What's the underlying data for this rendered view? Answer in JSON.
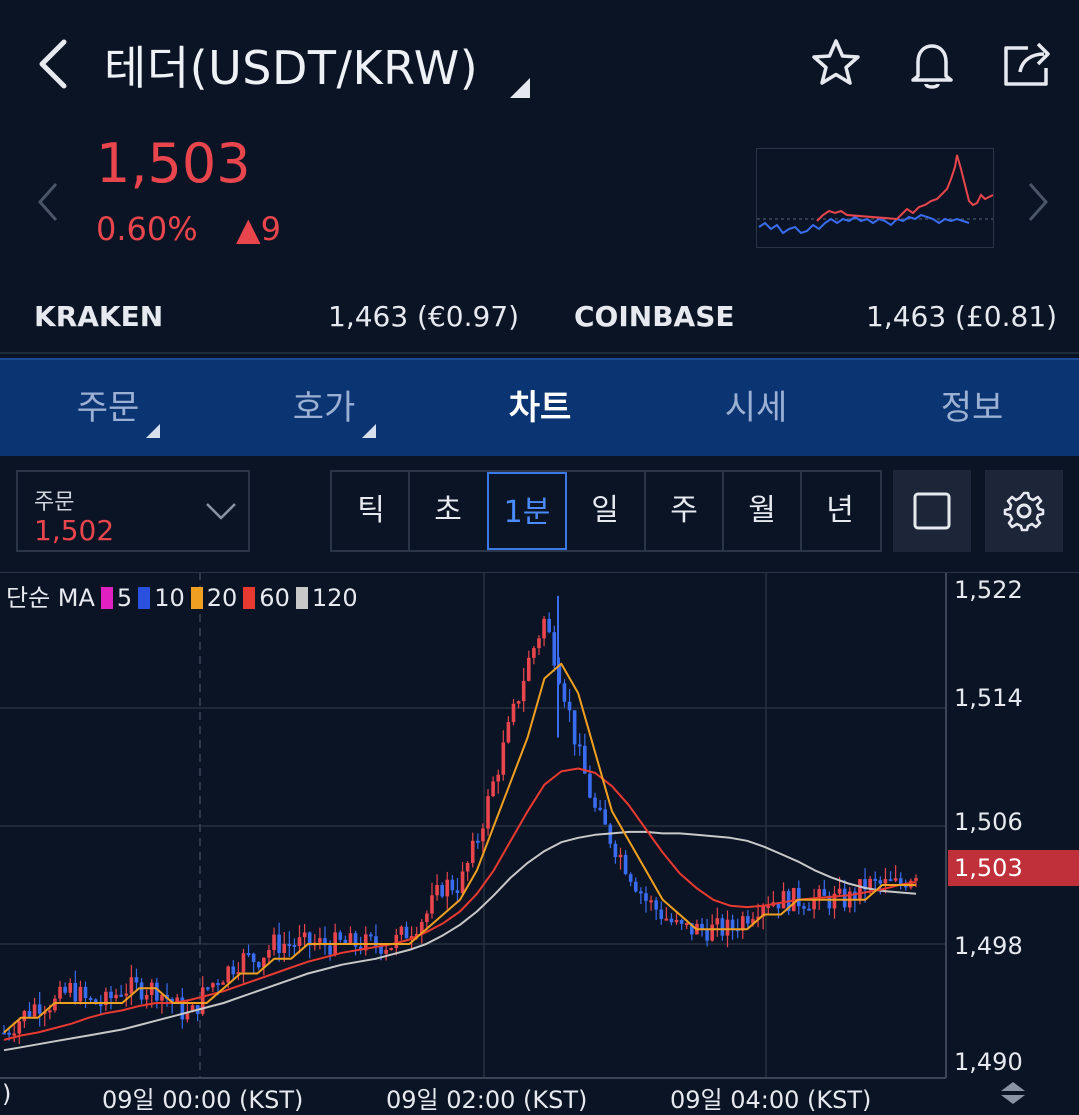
{
  "header": {
    "title": "테더(USDT/KRW)",
    "icons": [
      "back-icon",
      "star-icon",
      "bell-icon",
      "share-icon"
    ]
  },
  "price": {
    "current": "1,503",
    "change_pct": "0.60%",
    "change_abs": "▲9",
    "color_up": "#e8454c"
  },
  "exchanges": [
    {
      "name": "KRAKEN",
      "value": "1,463 (€0.97)"
    },
    {
      "name": "COINBASE",
      "value": "1,463 (£0.81)"
    }
  ],
  "tabs": [
    {
      "label": "주문",
      "has_menu": true
    },
    {
      "label": "호가",
      "has_menu": true
    },
    {
      "label": "차트",
      "active": true
    },
    {
      "label": "시세"
    },
    {
      "label": "정보"
    }
  ],
  "order": {
    "label": "주문",
    "value": "1,502"
  },
  "intervals": [
    "틱",
    "초",
    "1분",
    "일",
    "주",
    "월",
    "년"
  ],
  "active_interval": "1분",
  "chart_data": {
    "type": "candlestick",
    "ma_legend": {
      "prefix": "단순 MA",
      "items": [
        {
          "period": "5",
          "color": "#e020c0"
        },
        {
          "period": "10",
          "color": "#2a50e0"
        },
        {
          "period": "20",
          "color": "#f0a020"
        },
        {
          "period": "60",
          "color": "#e83a30"
        },
        {
          "period": "120",
          "color": "#c8c8c8"
        }
      ]
    },
    "y_ticks": [
      "1,522",
      "1,514",
      "1,506",
      "1,498",
      "1,490"
    ],
    "y_range": [
      1490,
      1522
    ],
    "current_price_tag": "1,503",
    "x_ticks": [
      "09일 00:00 (KST)",
      "09일 02:00 (KST)",
      "09일 04:00 (KST)"
    ],
    "x_edge_label": ")",
    "close_path": [
      1492,
      1493,
      1494,
      1494,
      1495,
      1494,
      1494,
      1495,
      1495,
      1495,
      1494,
      1493,
      1495,
      1496,
      1497,
      1497,
      1498,
      1498,
      1498,
      1498,
      1498,
      1498,
      1498,
      1498,
      1499,
      1500,
      1502,
      1502,
      1505,
      1509,
      1513,
      1517,
      1520,
      1516,
      1511,
      1507,
      1505,
      1503,
      1501,
      1500,
      1499,
      1499,
      1499,
      1499,
      1500,
      1501,
      1501,
      1501,
      1501,
      1501,
      1501,
      1502,
      1502,
      1502,
      1503
    ],
    "ma5": [
      1492,
      1493,
      1493,
      1494,
      1494,
      1494,
      1494,
      1494,
      1495,
      1495,
      1494,
      1494,
      1494,
      1495,
      1496,
      1496,
      1497,
      1497,
      1498,
      1498,
      1498,
      1498,
      1498,
      1498,
      1498,
      1499,
      1500,
      1501,
      1503,
      1506,
      1509,
      1512,
      1516,
      1517,
      1515,
      1511,
      1507,
      1505,
      1503,
      1501,
      1500,
      1499,
      1499,
      1499,
      1499,
      1500,
      1500,
      1501,
      1501,
      1501,
      1501,
      1501,
      1502,
      1502,
      1502
    ],
    "ma60": [
      1491.5,
      1491.8,
      1492,
      1492.3,
      1492.6,
      1493,
      1493.3,
      1493.5,
      1493.8,
      1494,
      1494,
      1494.2,
      1494.5,
      1494.8,
      1495.2,
      1495.6,
      1496,
      1496.4,
      1496.8,
      1497.1,
      1497.4,
      1497.6,
      1497.8,
      1498,
      1498.3,
      1498.8,
      1499.4,
      1500.2,
      1501.4,
      1503,
      1505,
      1507,
      1508.8,
      1509.7,
      1509.9,
      1509.6,
      1508.7,
      1507.4,
      1505.8,
      1504.2,
      1502.8,
      1501.8,
      1501,
      1500.6,
      1500.5,
      1500.6,
      1500.8,
      1501,
      1501.1,
      1501.2,
      1501.3,
      1501.5,
      1501.7,
      1502,
      1502.2
    ],
    "ma120": [
      1490.8,
      1491,
      1491.2,
      1491.4,
      1491.6,
      1491.8,
      1492,
      1492.2,
      1492.5,
      1492.8,
      1493.1,
      1493.4,
      1493.7,
      1494,
      1494.4,
      1494.8,
      1495.2,
      1495.6,
      1496,
      1496.3,
      1496.6,
      1496.8,
      1497,
      1497.3,
      1497.6,
      1498,
      1498.6,
      1499.3,
      1500.2,
      1501.3,
      1502.5,
      1503.5,
      1504.3,
      1504.9,
      1505.2,
      1505.4,
      1505.5,
      1505.6,
      1505.6,
      1505.5,
      1505.5,
      1505.4,
      1505.3,
      1505.2,
      1505,
      1504.6,
      1504.1,
      1503.6,
      1503,
      1502.5,
      1502.1,
      1501.8,
      1501.6,
      1501.5,
      1501.4
    ]
  }
}
